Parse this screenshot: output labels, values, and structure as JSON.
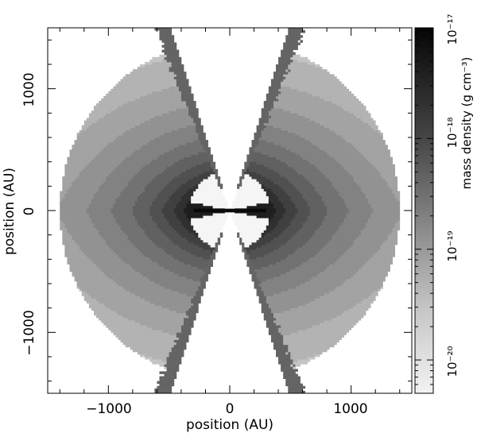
{
  "chart_data": {
    "type": "heatmap",
    "title": "",
    "xlabel": "position (AU)",
    "ylabel": "position (AU)",
    "xlim": [
      -1500,
      1500
    ],
    "ylim": [
      -1500,
      1500
    ],
    "x_ticks": [
      -1000,
      0,
      1000
    ],
    "y_ticks": [
      -1000,
      0,
      1000
    ],
    "x_tick_labels": [
      "−1000",
      "0",
      "1000"
    ],
    "y_tick_labels": [
      "−1000",
      "0",
      "1000"
    ],
    "grid": false,
    "colormap": "grayscale, white (low) to black (high)",
    "colorbar": {
      "label": "mass density (g cm⁻³)",
      "scale": "log",
      "range": [
        5e-21,
        1e-17
      ],
      "ticks": [
        1e-20,
        1e-19,
        1e-18,
        1e-17
      ],
      "tick_labels": [
        "10⁻²⁰",
        "10⁻¹⁹",
        "10⁻¹⁸",
        "10⁻¹⁷"
      ]
    },
    "structure": {
      "envelope_outer_radius_au": 1400,
      "outflow_cavity_half_opening_deg": 18,
      "inner_cavity_radius_au": 330
    }
  }
}
